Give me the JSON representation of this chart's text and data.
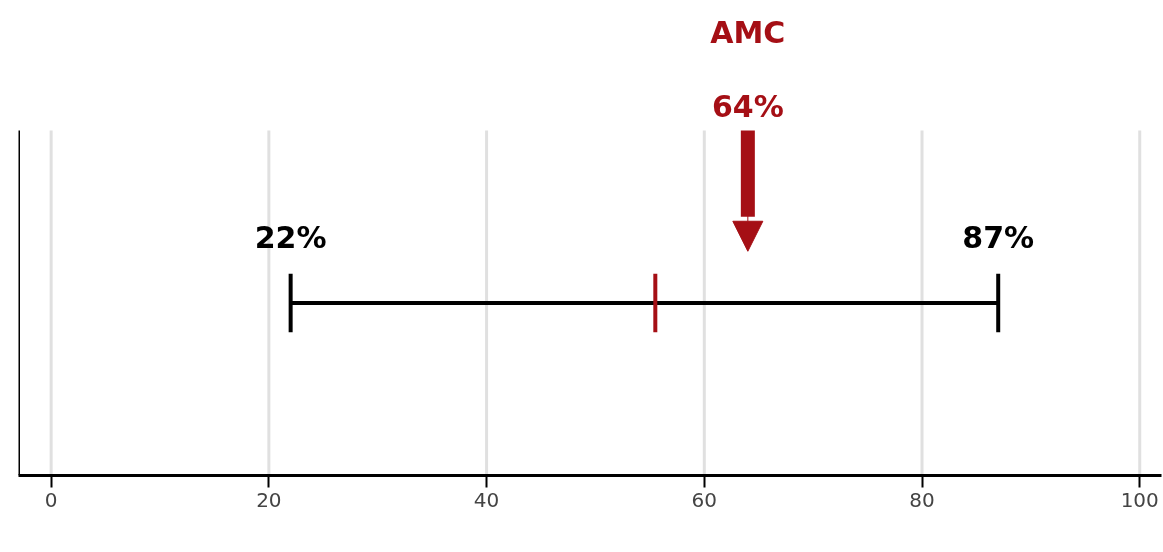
{
  "chart_data": {
    "type": "bar",
    "orientation": "horizontal",
    "categories": [
      null
    ],
    "base": [
      22
    ],
    "values": [
      65
    ],
    "color": "#000000",
    "xlim": [
      -3,
      102
    ],
    "xticks": [
      0,
      20,
      40,
      60,
      80,
      100
    ],
    "grid": "x",
    "tick_labels": "x",
    "ref_lines": [
      {
        "axis": "x",
        "value": 55.5,
        "color": "#a50f15"
      },
      {
        "axis": "x",
        "value": 64,
        "label": "64%",
        "color": "#a50f15"
      }
    ],
    "annotations": [
      "22%",
      "87%",
      "AMC"
    ]
  }
}
